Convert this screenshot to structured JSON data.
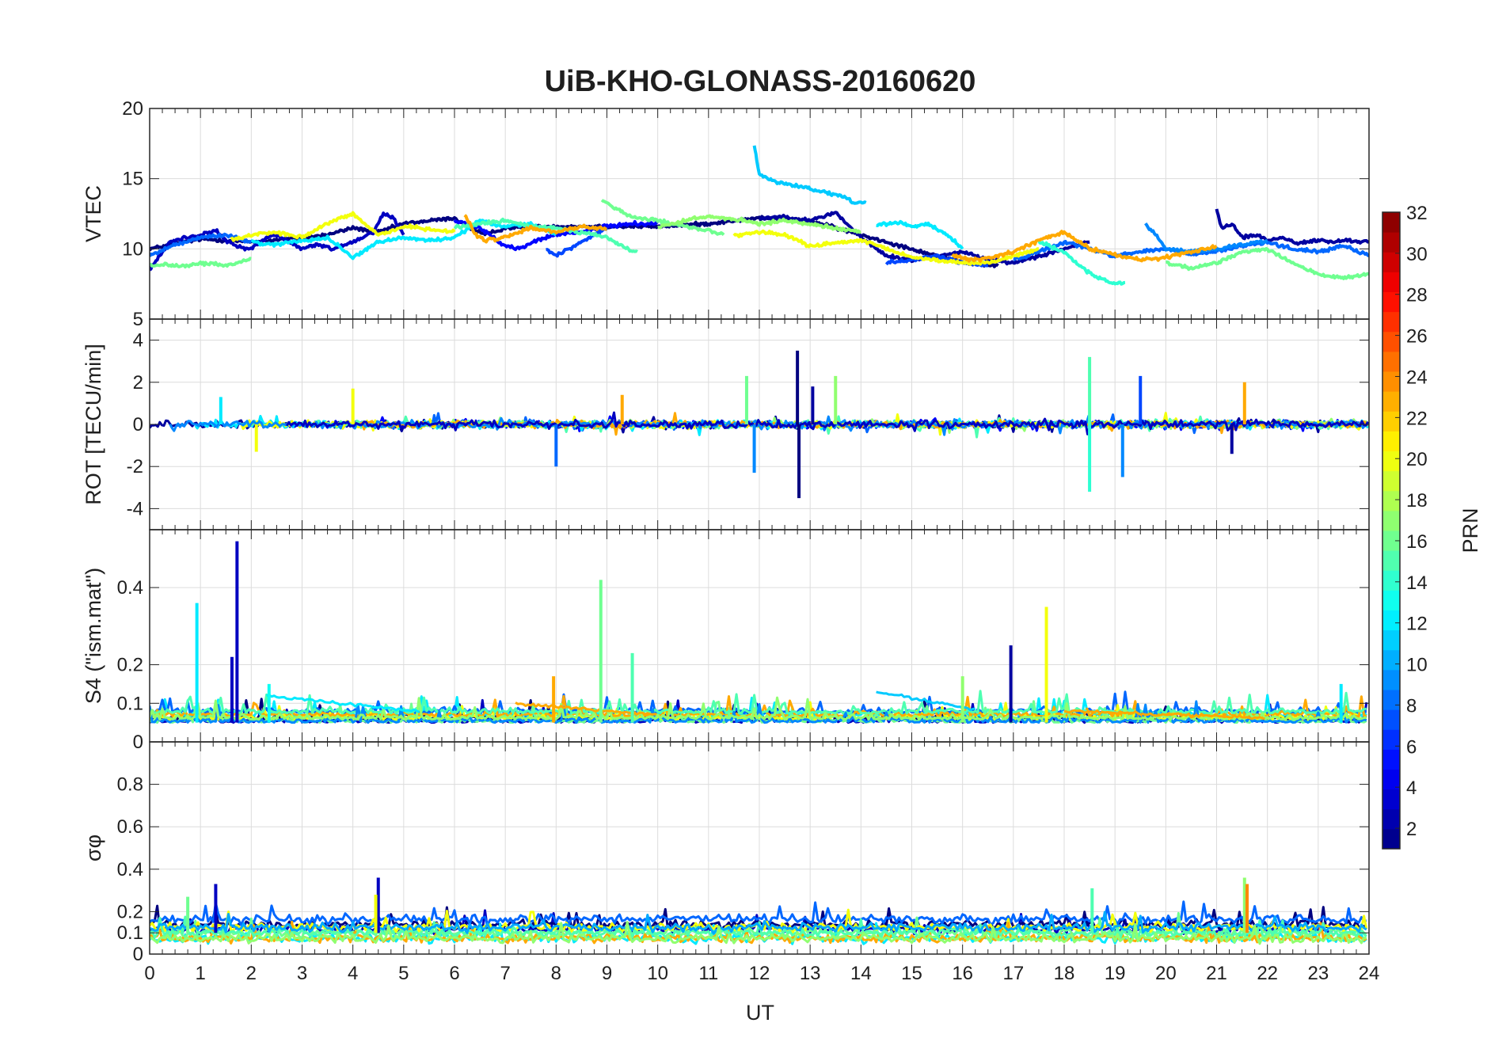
{
  "chart_data": {
    "type": "line",
    "title": "UiB-KHO-GLONASS-20160620",
    "xlabel": "UT",
    "xlim": [
      0,
      24
    ],
    "x_ticks": [
      "0",
      "1",
      "2",
      "3",
      "4",
      "5",
      "6",
      "7",
      "8",
      "9",
      "10",
      "11",
      "12",
      "13",
      "14",
      "15",
      "16",
      "17",
      "18",
      "19",
      "20",
      "21",
      "22",
      "23",
      "24"
    ],
    "grid": true,
    "colormap": "jet",
    "colorbar": {
      "label": "PRN",
      "range": [
        1,
        32
      ],
      "ticks": [
        "2",
        "4",
        "6",
        "8",
        "10",
        "12",
        "14",
        "16",
        "18",
        "20",
        "22",
        "24",
        "26",
        "28",
        "30",
        "32"
      ],
      "placement": "right"
    },
    "panels": [
      {
        "id": "vtec",
        "ylabel": "VTEC",
        "ylim": [
          5,
          20
        ],
        "y_ticks": [
          "5",
          "10",
          "15",
          "20"
        ],
        "series": [
          {
            "prn": 1,
            "x": [
              0.0,
              1.0,
              2.0,
              3.0,
              3.5,
              4.0,
              4.5,
              5.0,
              6.0,
              6.3,
              6.6,
              7.0,
              8.0,
              9.0,
              10.0,
              11.0,
              12.0,
              13.0,
              14.0,
              15.0,
              16.0,
              16.7
            ],
            "y": [
              10.0,
              10.7,
              10.5,
              10.8,
              11.0,
              11.5,
              11.2,
              11.8,
              12.2,
              11.5,
              11.0,
              11.5,
              11.6,
              11.6,
              11.6,
              11.8,
              12.2,
              12.0,
              11.0,
              10.0,
              9.0,
              8.8
            ]
          },
          {
            "prn": 3,
            "x": [
              0.0,
              0.4,
              0.7,
              1.0,
              1.3,
              1.5,
              1.7,
              2.0,
              2.3,
              2.5,
              3.0,
              3.3,
              3.6,
              4.0,
              4.4,
              4.6,
              4.8,
              5.0
            ],
            "y": [
              8.5,
              10.5,
              10.8,
              11.0,
              11.3,
              10.6,
              10.2,
              10.0,
              10.8,
              11.0,
              10.0,
              10.3,
              10.0,
              10.5,
              11.2,
              12.5,
              12.2,
              11.0
            ]
          },
          {
            "prn": 2,
            "x": [
              12.0,
              12.5,
              13.0,
              13.5,
              14.0,
              14.5,
              15.0,
              15.5,
              16.0,
              16.5,
              17.0,
              17.5,
              18.0,
              18.5
            ],
            "y": [
              12.2,
              12.3,
              12.0,
              12.6,
              10.8,
              9.5,
              9.2,
              9.5,
              9.8,
              9.2,
              9.0,
              9.5,
              10.0,
              10.5
            ]
          },
          {
            "prn": 2,
            "x": [
              21.0,
              21.1,
              21.3,
              21.5,
              21.8,
              22.0,
              22.3,
              22.6,
              23.0,
              23.3,
              23.6,
              24.0
            ],
            "y": [
              12.8,
              11.5,
              11.8,
              10.8,
              11.0,
              10.6,
              10.8,
              10.4,
              10.6,
              10.5,
              10.6,
              10.5
            ]
          },
          {
            "prn": 5,
            "x": [
              6.0,
              6.5,
              7.0,
              7.3,
              7.6,
              8.0,
              8.5,
              9.0,
              9.5,
              10.0
            ],
            "y": [
              12.0,
              11.5,
              10.2,
              10.0,
              10.6,
              11.0,
              11.2,
              11.6,
              11.8,
              11.8
            ]
          },
          {
            "prn": 7,
            "x": [
              7.8,
              8.0,
              8.5,
              9.0
            ],
            "y": [
              10.0,
              9.5,
              10.5,
              11.5
            ]
          },
          {
            "prn": 7,
            "x": [
              14.5,
              15.0,
              15.5,
              16.0,
              16.5
            ],
            "y": [
              9.0,
              9.2,
              9.5,
              9.0,
              8.8
            ]
          },
          {
            "prn": 8,
            "x": [
              0.0,
              0.5,
              1.0,
              1.5,
              2.0
            ],
            "y": [
              9.5,
              10.3,
              10.8,
              11.0,
              10.5
            ]
          },
          {
            "prn": 8,
            "x": [
              17.0,
              17.5,
              18.0,
              18.5,
              19.0,
              19.5,
              20.0,
              20.5,
              21.0
            ],
            "y": [
              9.2,
              9.8,
              10.5,
              10.0,
              9.5,
              9.8,
              10.0,
              9.6,
              9.8
            ]
          },
          {
            "prn": 8,
            "x": [
              21.0,
              21.5,
              22.0,
              22.5,
              23.0,
              23.5,
              24.0
            ],
            "y": [
              9.8,
              10.2,
              10.5,
              10.0,
              9.8,
              10.2,
              9.5
            ]
          },
          {
            "prn": 9,
            "x": [
              19.6,
              19.8,
              20.0,
              20.5,
              21.0,
              21.5,
              22.0
            ],
            "y": [
              11.8,
              11.0,
              10.0,
              9.8,
              10.0,
              10.3,
              10.6
            ]
          },
          {
            "prn": 11,
            "x": [
              11.9,
              12.0,
              12.3,
              12.6,
              13.0,
              13.3,
              13.6,
              13.9,
              14.1
            ],
            "y": [
              17.3,
              15.3,
              14.8,
              14.6,
              14.3,
              14.0,
              13.8,
              13.2,
              13.3
            ]
          },
          {
            "prn": 12,
            "x": [
              14.3,
              14.7,
              15.0,
              15.3,
              15.7,
              16.0
            ],
            "y": [
              11.7,
              11.9,
              11.6,
              11.8,
              11.0,
              10.0
            ]
          },
          {
            "prn": 12,
            "x": [
              2.0,
              2.5,
              3.0,
              3.5,
              4.0,
              4.5,
              5.0,
              5.5,
              6.0,
              6.5,
              7.0,
              7.5,
              8.0
            ],
            "y": [
              10.5,
              10.3,
              10.6,
              10.8,
              9.4,
              10.5,
              10.8,
              10.6,
              10.8,
              12.0,
              11.6,
              11.8,
              11.0
            ]
          },
          {
            "prn": 14,
            "x": [
              17.5,
              18.0,
              18.3,
              18.6,
              19.0,
              19.2
            ],
            "y": [
              10.5,
              9.8,
              8.8,
              8.0,
              7.5,
              7.6
            ]
          },
          {
            "prn": 15,
            "x": [
              6.0,
              6.5,
              7.0,
              7.5,
              8.0,
              8.5,
              9.0,
              9.5,
              9.6
            ],
            "y": [
              11.5,
              11.8,
              12.0,
              11.6,
              11.5,
              11.2,
              10.8,
              9.8,
              9.8
            ]
          },
          {
            "prn": 16,
            "x": [
              0.0,
              0.3,
              0.6,
              1.0,
              1.5,
              2.0
            ],
            "y": [
              8.8,
              8.9,
              8.7,
              9.0,
              8.8,
              9.3
            ]
          },
          {
            "prn": 16,
            "x": [
              8.9,
              9.2,
              9.5,
              10.0,
              10.5,
              11.0,
              11.3
            ],
            "y": [
              13.5,
              12.8,
              12.3,
              12.0,
              11.6,
              11.3,
              11.0
            ]
          },
          {
            "prn": 16,
            "x": [
              20.0,
              20.5,
              21.0,
              21.5,
              22.0,
              22.5,
              23.0,
              23.5,
              24.0
            ],
            "y": [
              9.0,
              8.6,
              9.0,
              9.8,
              10.0,
              9.0,
              8.2,
              7.9,
              8.2
            ]
          },
          {
            "prn": 17,
            "x": [
              10.0,
              10.5,
              11.0,
              11.5,
              12.0,
              12.5,
              13.0,
              13.5,
              14.0
            ],
            "y": [
              11.5,
              12.0,
              12.3,
              12.1,
              11.8,
              12.0,
              11.8,
              11.5,
              11.2
            ]
          },
          {
            "prn": 20,
            "x": [
              1.6,
              2.0,
              2.5,
              3.0,
              3.5,
              4.0,
              4.5,
              5.0,
              5.5,
              6.0
            ],
            "y": [
              10.6,
              11.0,
              11.2,
              10.8,
              11.8,
              12.5,
              11.0,
              11.6,
              11.4,
              11.2
            ]
          },
          {
            "prn": 20,
            "x": [
              11.5,
              12.0,
              12.5,
              13.0,
              13.5,
              14.0,
              14.5,
              15.0,
              15.5,
              16.0,
              16.5,
              17.0,
              17.5
            ],
            "y": [
              11.0,
              11.2,
              11.0,
              10.2,
              10.4,
              10.6,
              10.0,
              9.4,
              9.2,
              9.0,
              9.0,
              9.5,
              10.0
            ]
          },
          {
            "prn": 23,
            "x": [
              6.2,
              6.4,
              6.6,
              7.0,
              7.5,
              8.0,
              8.5,
              9.0
            ],
            "y": [
              12.5,
              11.0,
              10.6,
              10.8,
              11.5,
              11.2,
              11.6,
              11.4
            ]
          },
          {
            "prn": 23,
            "x": [
              15.8,
              16.2,
              16.6,
              17.0,
              17.5,
              18.0,
              18.5,
              19.0,
              19.5,
              20.0,
              20.5,
              21.0
            ],
            "y": [
              9.5,
              9.2,
              9.4,
              9.8,
              10.6,
              11.2,
              10.0,
              9.6,
              9.2,
              9.4,
              9.8,
              10.2
            ]
          }
        ]
      },
      {
        "id": "rot",
        "ylabel": "ROT [TECU/min]",
        "ylim": [
          -5,
          5
        ],
        "y_ticks": [
          "-4",
          "-2",
          "0",
          "2",
          "4"
        ],
        "noise": 0.25,
        "spikes": [
          {
            "x": 12.75,
            "y": 3.5,
            "prn": 1
          },
          {
            "x": 12.78,
            "y": -3.5,
            "prn": 1
          },
          {
            "x": 13.05,
            "y": 1.8,
            "prn": 2
          },
          {
            "x": 13.5,
            "y": 2.3,
            "prn": 17
          },
          {
            "x": 11.75,
            "y": 2.3,
            "prn": 16
          },
          {
            "x": 11.9,
            "y": -2.3,
            "prn": 9
          },
          {
            "x": 18.5,
            "y": 3.2,
            "prn": 15
          },
          {
            "x": 18.5,
            "y": -3.2,
            "prn": 14
          },
          {
            "x": 19.15,
            "y": -2.5,
            "prn": 9
          },
          {
            "x": 19.5,
            "y": 2.3,
            "prn": 7
          },
          {
            "x": 21.55,
            "y": 2.0,
            "prn": 23
          },
          {
            "x": 21.3,
            "y": -1.4,
            "prn": 2
          },
          {
            "x": 8.0,
            "y": -2.0,
            "prn": 8
          },
          {
            "x": 4.0,
            "y": 1.7,
            "prn": 20
          },
          {
            "x": 2.1,
            "y": -1.3,
            "prn": 20
          },
          {
            "x": 1.4,
            "y": 1.3,
            "prn": 12
          },
          {
            "x": 9.3,
            "y": 1.4,
            "prn": 23
          }
        ]
      },
      {
        "id": "s4",
        "ylabel": "S4 (\"ism.mat\")",
        "ylim": [
          0,
          0.55
        ],
        "y_ticks": [
          "0",
          "0.1",
          "0.2",
          "0.4"
        ],
        "baseline": 0.05,
        "spikes": [
          {
            "x": 1.72,
            "y": 0.52,
            "prn": 3
          },
          {
            "x": 1.62,
            "y": 0.22,
            "prn": 3
          },
          {
            "x": 0.93,
            "y": 0.36,
            "prn": 12
          },
          {
            "x": 8.88,
            "y": 0.42,
            "prn": 16
          },
          {
            "x": 9.5,
            "y": 0.23,
            "prn": 15
          },
          {
            "x": 17.65,
            "y": 0.35,
            "prn": 20
          },
          {
            "x": 16.95,
            "y": 0.25,
            "prn": 2
          },
          {
            "x": 7.95,
            "y": 0.17,
            "prn": 23
          },
          {
            "x": 23.45,
            "y": 0.15,
            "prn": 12
          },
          {
            "x": 16.0,
            "y": 0.17,
            "prn": 17
          },
          {
            "x": 2.35,
            "y": 0.15,
            "prn": 13
          }
        ],
        "bumps": [
          {
            "x0": 2.3,
            "x1": 5.3,
            "y": 0.12,
            "prn": 12
          },
          {
            "x0": 14.3,
            "x1": 16.3,
            "y": 0.13,
            "prn": 11
          },
          {
            "x0": 7.2,
            "x1": 10.0,
            "y": 0.1,
            "prn": 23
          },
          {
            "x0": 18.0,
            "x1": 22.0,
            "y": 0.08,
            "prn": 23
          }
        ]
      },
      {
        "id": "sigma",
        "ylabel": "σφ",
        "ylim": [
          0,
          1
        ],
        "y_ticks": [
          "0",
          "0.1",
          "0.2",
          "0.4",
          "0.6",
          "0.8"
        ],
        "baseline": 0.1,
        "spikes": [
          {
            "x": 4.5,
            "y": 0.36,
            "prn": 3
          },
          {
            "x": 1.3,
            "y": 0.33,
            "prn": 3
          },
          {
            "x": 4.45,
            "y": 0.28,
            "prn": 20
          },
          {
            "x": 21.55,
            "y": 0.36,
            "prn": 17
          },
          {
            "x": 21.6,
            "y": 0.33,
            "prn": 24
          },
          {
            "x": 18.55,
            "y": 0.31,
            "prn": 15
          },
          {
            "x": 0.75,
            "y": 0.27,
            "prn": 16
          }
        ]
      }
    ]
  }
}
